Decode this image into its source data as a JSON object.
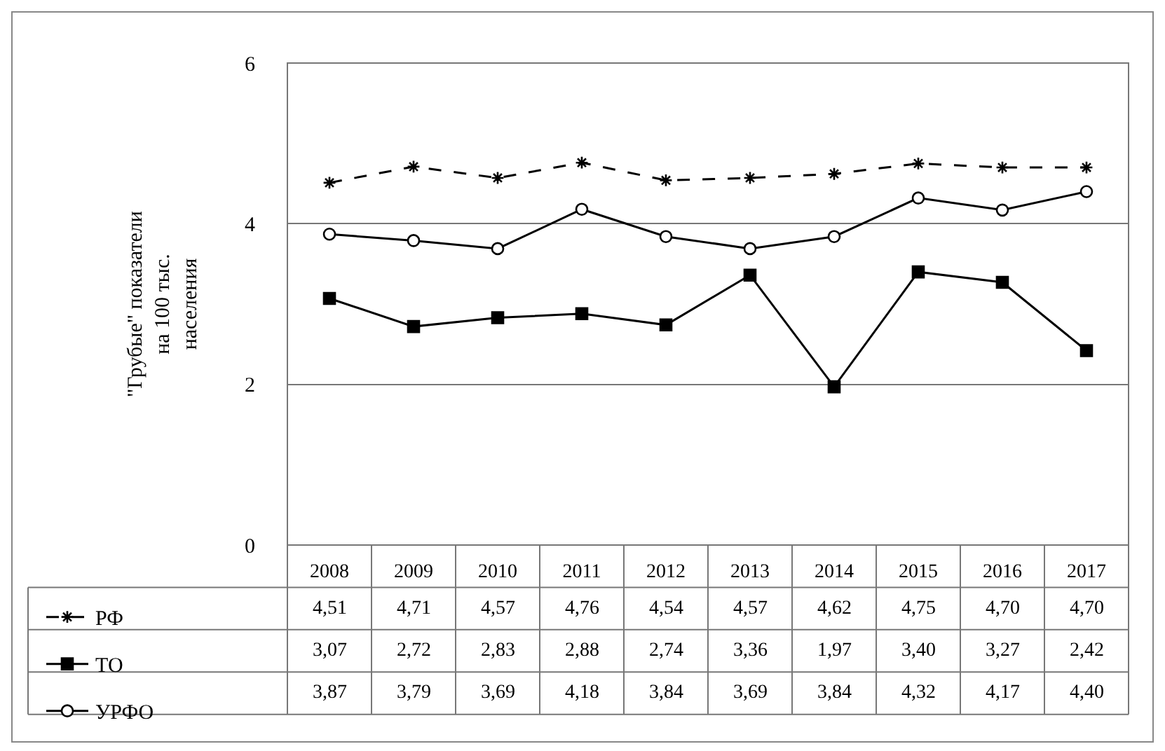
{
  "chart_data": {
    "type": "line",
    "ylabel": "\"Грубые\" показатели на 100 тыс. населения",
    "categories": [
      "2008",
      "2009",
      "2010",
      "2011",
      "2012",
      "2013",
      "2014",
      "2015",
      "2016",
      "2017"
    ],
    "ylim": [
      0,
      6
    ],
    "yticks": [
      0,
      2,
      4,
      6
    ],
    "grid": true,
    "legend": "bottom",
    "series": [
      {
        "name": "РФ",
        "color": "#000000",
        "marker": "cross",
        "line_style": "dashed",
        "values": [
          4.51,
          4.71,
          4.57,
          4.76,
          4.54,
          4.57,
          4.62,
          4.75,
          4.7,
          4.7
        ],
        "value_labels": [
          "4,51",
          "4,71",
          "4,57",
          "4,76",
          "4,54",
          "4,57",
          "4,62",
          "4,75",
          "4,70",
          "4,70"
        ]
      },
      {
        "name": "ТО",
        "color": "#000000",
        "marker": "square",
        "line_style": "solid",
        "values": [
          3.07,
          2.72,
          2.83,
          2.88,
          2.74,
          3.36,
          1.97,
          3.4,
          3.27,
          2.42
        ],
        "value_labels": [
          "3,07",
          "2,72",
          "2,83",
          "2,88",
          "2,74",
          "3,36",
          "1,97",
          "3,40",
          "3,27",
          "2,42"
        ]
      },
      {
        "name": "УРФО",
        "color": "#000000",
        "marker": "circle",
        "line_style": "solid",
        "values": [
          3.87,
          3.79,
          3.69,
          4.18,
          3.84,
          3.69,
          3.84,
          4.32,
          4.17,
          4.4
        ],
        "value_labels": [
          "3,87",
          "3,79",
          "3,69",
          "4,18",
          "3,84",
          "3,69",
          "3,84",
          "4,32",
          "4,17",
          "4,40"
        ]
      }
    ]
  }
}
